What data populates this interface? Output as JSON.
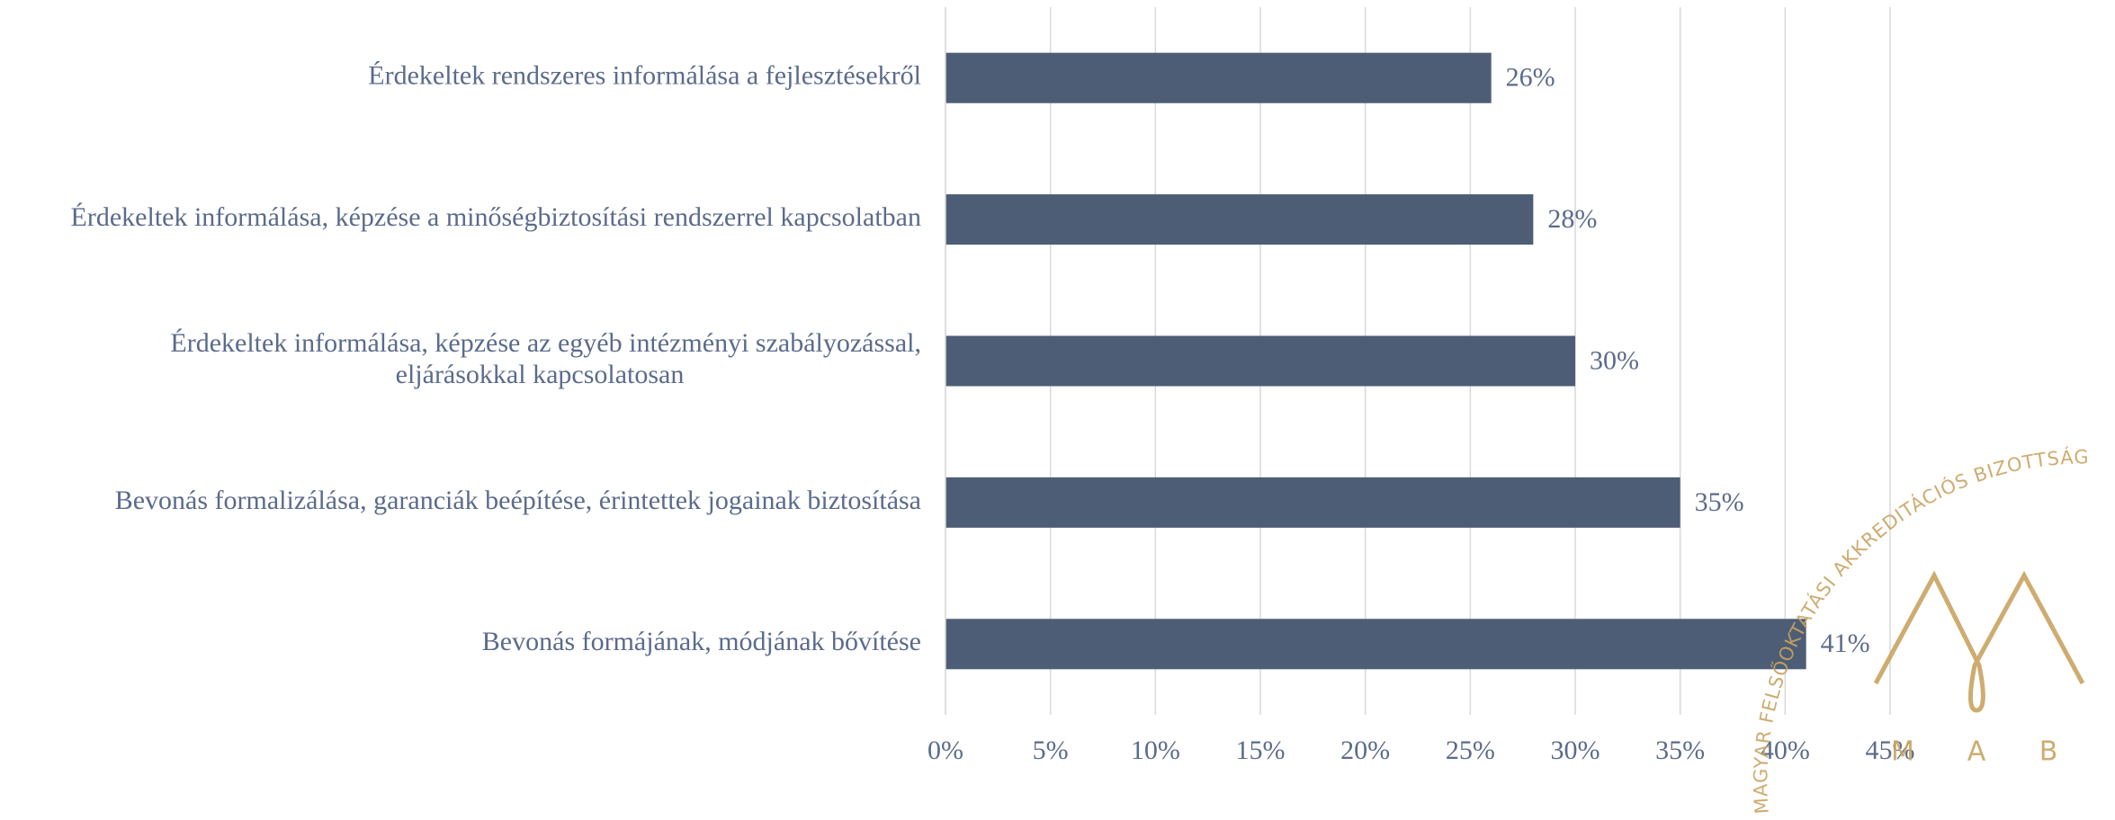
{
  "chart_data": {
    "type": "barh",
    "categories": [
      "Érdekeltek rendszeres informálása a fejlesztésekről",
      "Érdekeltek informálása, képzése a minőségbiztosítási rendszerrel kapcsolatban",
      [
        "Érdekeltek informálása, képzése az egyéb intézményi szabályozással,",
        "eljárásokkal kapcsolatosan"
      ],
      "Bevonás formalizálása, garanciák beépítése, érintettek jogainak biztosítása",
      "Bevonás formájának, módjának bővítése"
    ],
    "values": [
      26,
      28,
      30,
      35,
      41
    ],
    "value_labels": [
      "26%",
      "28%",
      "30%",
      "35%",
      "41%"
    ],
    "color": "#4d5d75",
    "xlim": [
      0,
      45
    ],
    "xticks": [
      {
        "value": 0,
        "label": "0%"
      },
      {
        "value": 5,
        "label": "5%"
      },
      {
        "value": 10,
        "label": "10%"
      },
      {
        "value": 15,
        "label": "15%"
      },
      {
        "value": 20,
        "label": "20%"
      },
      {
        "value": 25,
        "label": "25%"
      },
      {
        "value": 30,
        "label": "30%"
      },
      {
        "value": 35,
        "label": "35%"
      },
      {
        "value": 40,
        "label": "40%"
      },
      {
        "value": 45,
        "label": "45%"
      }
    ],
    "grid": true
  },
  "logo": {
    "arc_text": "MAGYAR FELSŐOKTATÁSI AKKREDITÁCIÓS BIZOTTSÁG",
    "letters": [
      "M",
      "A",
      "B"
    ]
  }
}
